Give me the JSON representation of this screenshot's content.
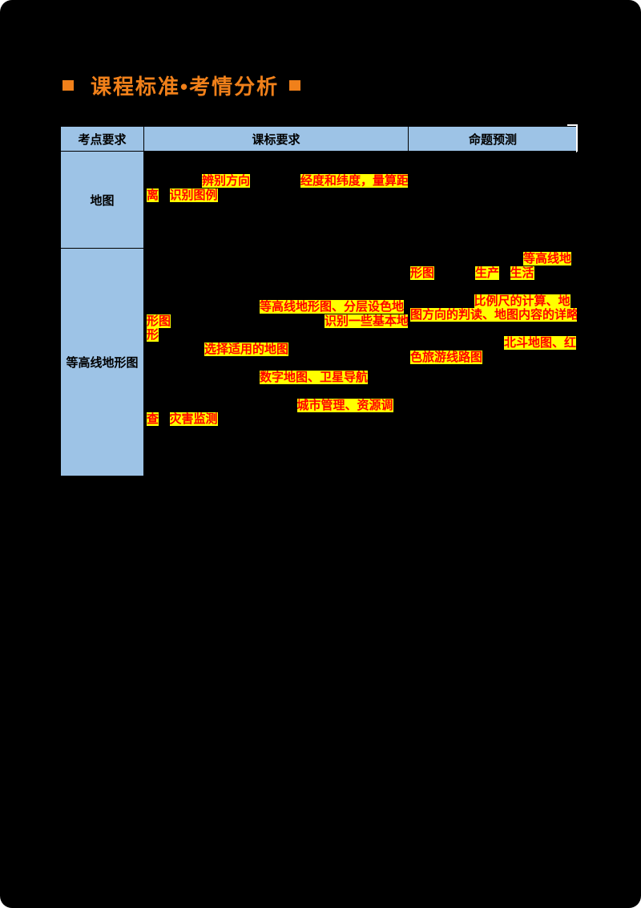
{
  "colors": {
    "page_background": "#000000",
    "corner_frame": "#FFFFFF",
    "accent_orange": "#F0801A",
    "table_header_bg": "#9DC3E6",
    "cell_border": "#000000",
    "highlight_bg": "#FFFF00",
    "highlight_text": "#FF0000"
  },
  "title": {
    "text": "课程标准•考情分析"
  },
  "table": {
    "headers": [
      "考点要求",
      "课标要求",
      "命题预测"
    ],
    "rows": [
      {
        "topic": "地图",
        "kebiao_lines": [
          [
            {
              "g": 4.6
            },
            {
              "t": "辨别方向",
              "h": true
            },
            {
              "g": 4.2
            },
            {
              "t": "经度和纬度，",
              "h": true
            },
            {
              "t": "量算距",
              "h": true
            }
          ],
          [
            {
              "t": "离",
              "h": true
            },
            {
              "g": 0.9
            },
            {
              "t": "识别图例",
              "h": true
            }
          ]
        ],
        "mingti_lines": []
      },
      {
        "topic": "等高线地形图",
        "kebiao_lines": [
          [
            {
              "g": 9.4
            },
            {
              "t": "等高线地形图、分层设色地",
              "h": true
            }
          ],
          [
            {
              "t": "形图",
              "h": true
            },
            {
              "g": 12.8
            },
            {
              "t": "识别一些基本地",
              "h": true
            }
          ],
          [
            {
              "t": "形",
              "h": true
            }
          ],
          [
            {
              "g": 4.8
            },
            {
              "t": "选择适用的地图",
              "h": true
            }
          ],
          [],
          [
            {
              "g": 9.4
            },
            {
              "t": "数字地图、卫星导航",
              "h": true
            }
          ],
          [],
          [
            {
              "g": 12.5
            },
            {
              "t": "城市管理、资源调",
              "h": true
            }
          ],
          [
            {
              "t": "查",
              "h": true
            },
            {
              "g": 0.9
            },
            {
              "t": "灾害监测",
              "h": true
            }
          ]
        ],
        "mingti_lines": [
          [
            {
              "g": 9.4
            },
            {
              "t": "等高线地",
              "h": true
            }
          ],
          [
            {
              "t": "形图",
              "h": true
            },
            {
              "g": 3.4
            },
            {
              "t": "生产",
              "h": true
            },
            {
              "g": 0.9
            },
            {
              "t": "生活",
              "h": true
            }
          ],
          [],
          [
            {
              "g": 5.3
            },
            {
              "t": "比例尺的计算、地",
              "h": true
            }
          ],
          [
            {
              "t": "图方向的判读、地图内容的详略",
              "h": true
            }
          ],
          [],
          [
            {
              "g": 7.8
            },
            {
              "t": "北斗地图、红",
              "h": true
            }
          ],
          [
            {
              "t": "色旅游线路图",
              "h": true
            }
          ]
        ]
      }
    ]
  }
}
